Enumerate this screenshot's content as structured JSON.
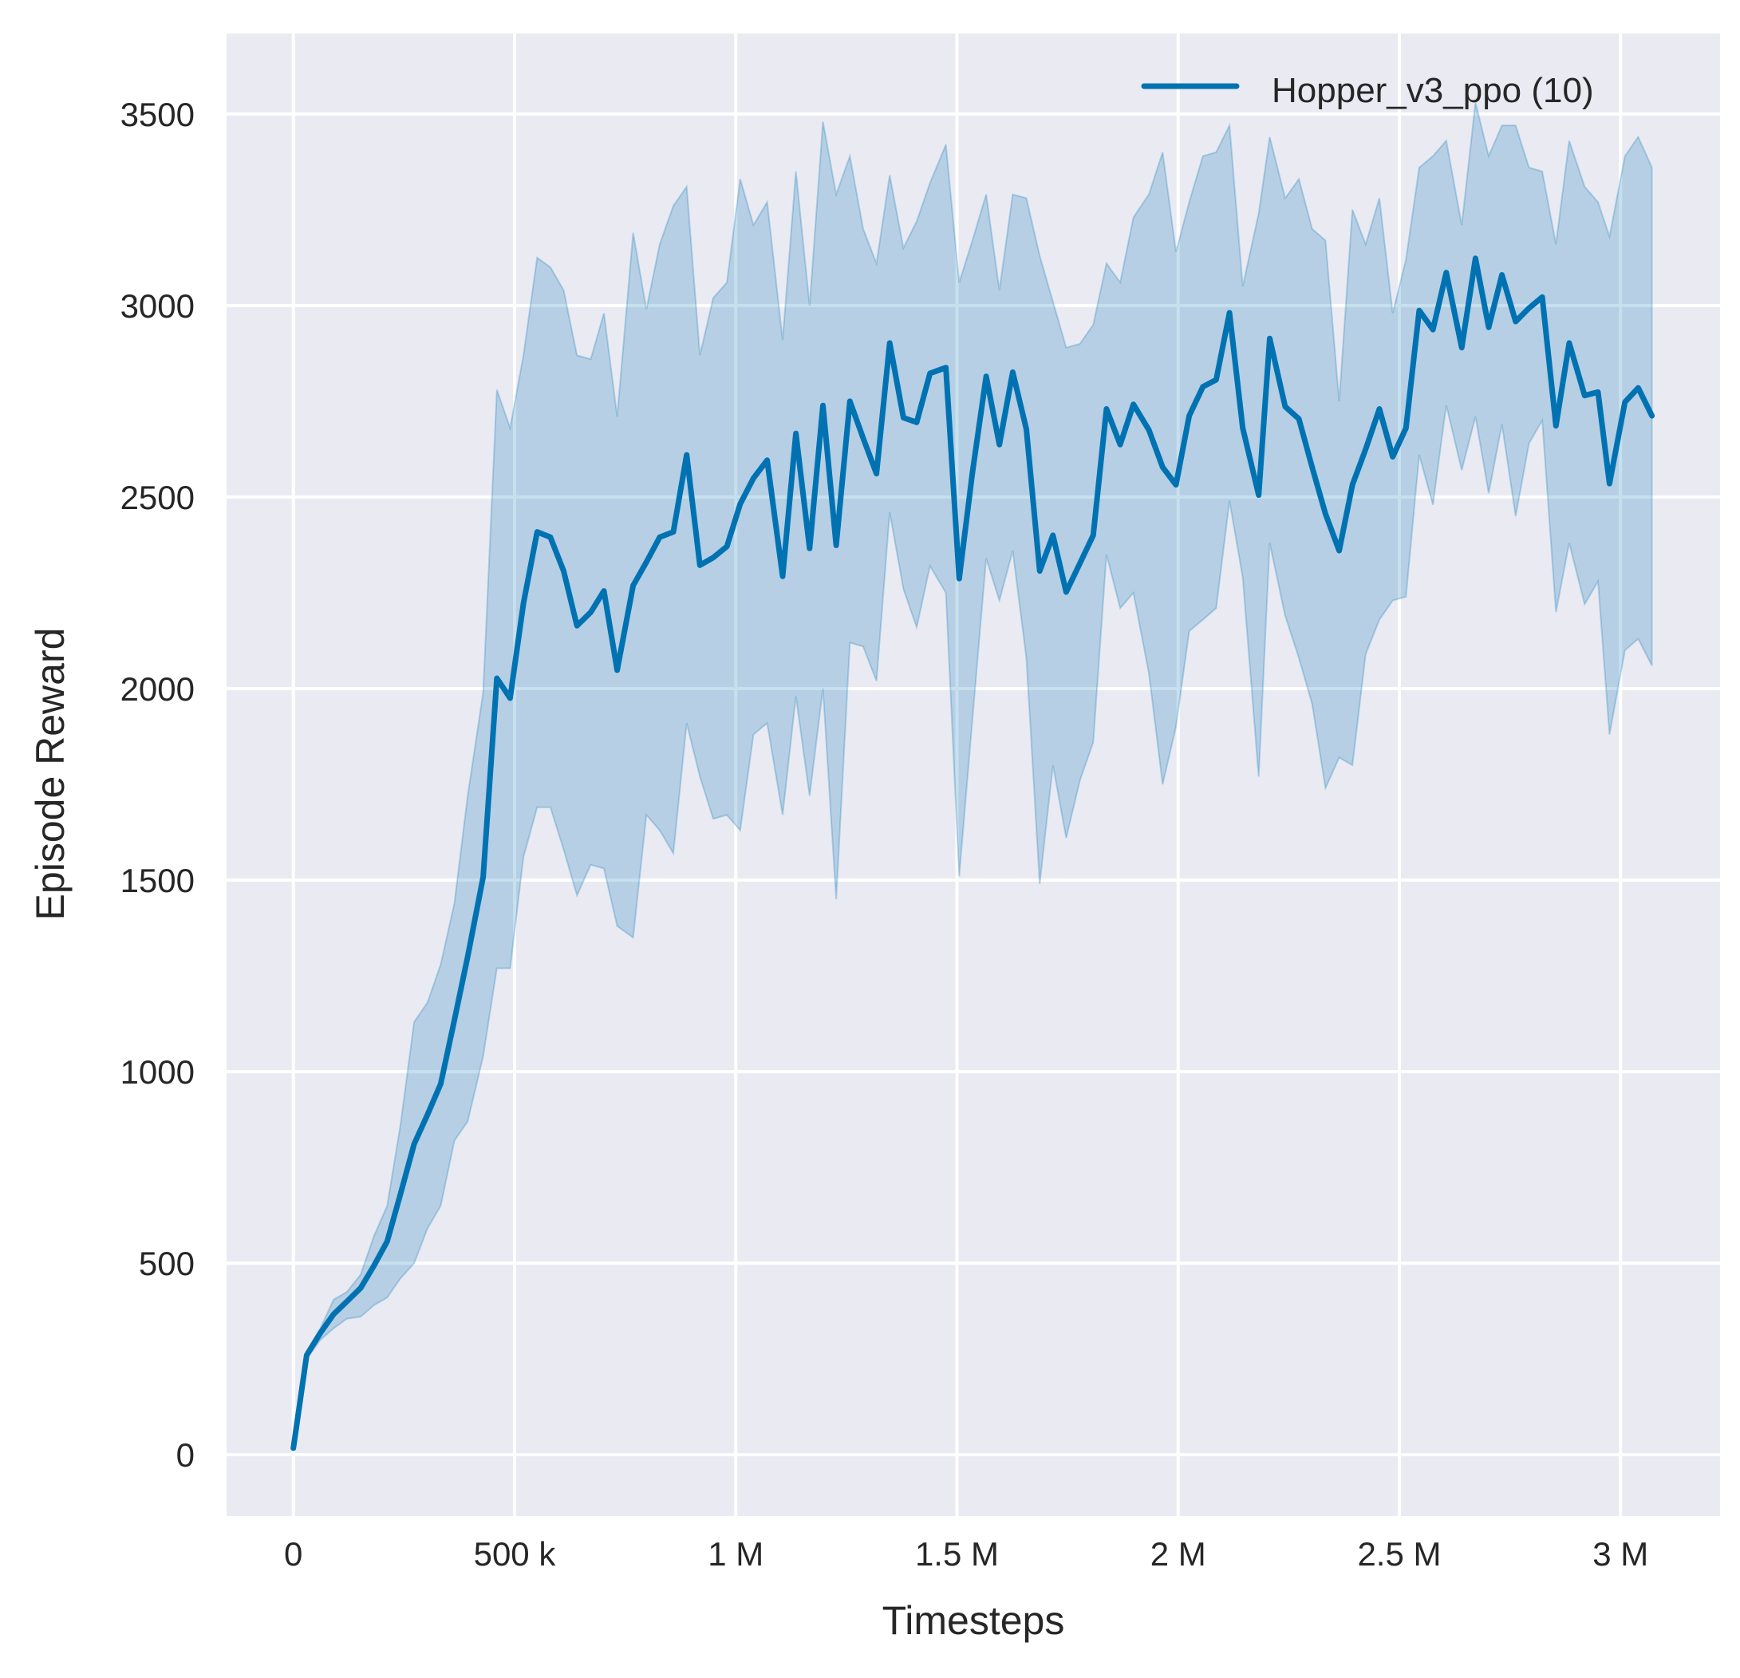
{
  "chart_data": {
    "type": "line",
    "title": "",
    "xlabel": "Timesteps",
    "ylabel": "Episode Reward",
    "xlim": [
      -151000,
      3225000
    ],
    "ylim": [
      -160,
      3710
    ],
    "xticks": [
      0,
      500000,
      1000000,
      1500000,
      2000000,
      2500000,
      3000000
    ],
    "xtick_labels": [
      "0",
      "500 k",
      "1 M",
      "1.5 M",
      "2 M",
      "2.5 M",
      "3 M"
    ],
    "yticks": [
      0,
      500,
      1000,
      1500,
      2000,
      2500,
      3000,
      3500
    ],
    "ytick_labels": [
      "0",
      "500",
      "1000",
      "1500",
      "2000",
      "2500",
      "3000",
      "3500"
    ],
    "grid": true,
    "background": "#eaeaf2",
    "legend_position": "top-right",
    "series": [
      {
        "name": "Hopper_v3_ppo (10)",
        "color": "#0072b2",
        "band_color": "#0072b2",
        "x": [
          0,
          30000,
          61000,
          91000,
          121000,
          152000,
          182000,
          212000,
          242000,
          273000,
          303000,
          333000,
          364000,
          394000,
          429000,
          460000,
          490000,
          520000,
          551000,
          581000,
          611000,
          641000,
          672000,
          702000,
          732000,
          768000,
          798000,
          828000,
          859000,
          889000,
          919000,
          949000,
          980000,
          1010000,
          1040000,
          1071000,
          1106000,
          1136000,
          1167000,
          1197000,
          1227000,
          1258000,
          1288000,
          1318000,
          1348000,
          1379000,
          1409000,
          1439000,
          1475000,
          1505000,
          1535000,
          1566000,
          1596000,
          1626000,
          1657000,
          1687000,
          1717000,
          1747000,
          1778000,
          1808000,
          1838000,
          1869000,
          1899000,
          1934000,
          1965000,
          1995000,
          2025000,
          2056000,
          2086000,
          2116000,
          2146000,
          2182000,
          2207000,
          2242000,
          2273000,
          2303000,
          2333000,
          2364000,
          2394000,
          2424000,
          2455000,
          2485000,
          2515000,
          2545000,
          2576000,
          2606000,
          2641000,
          2672000,
          2702000,
          2732000,
          2763000,
          2793000,
          2823000,
          2854000,
          2884000,
          2919000,
          2949000,
          2975000,
          3010000,
          3040000,
          3071000
        ],
        "mean": [
          17,
          260,
          318,
          367,
          400,
          435,
          493,
          557,
          680,
          811,
          887,
          968,
          1135,
          1300,
          1508,
          2027,
          1975,
          2222,
          2409,
          2395,
          2307,
          2164,
          2199,
          2255,
          2048,
          2269,
          2330,
          2395,
          2409,
          2610,
          2322,
          2342,
          2371,
          2482,
          2549,
          2596,
          2293,
          2666,
          2366,
          2739,
          2374,
          2750,
          2654,
          2561,
          2902,
          2707,
          2695,
          2823,
          2838,
          2287,
          2564,
          2815,
          2637,
          2826,
          2677,
          2307,
          2400,
          2252,
          2327,
          2400,
          2730,
          2637,
          2742,
          2675,
          2578,
          2532,
          2712,
          2788,
          2806,
          2981,
          2680,
          2505,
          2914,
          2736,
          2704,
          2578,
          2456,
          2360,
          2532,
          2625,
          2730,
          2605,
          2680,
          2987,
          2937,
          3086,
          2890,
          3123,
          2943,
          3080,
          2958,
          2993,
          3022,
          2686,
          2902,
          2765,
          2774,
          2535,
          2748,
          2785,
          2712
        ],
        "upper": [
          17,
          270,
          330,
          405,
          425,
          470,
          570,
          650,
          860,
          1130,
          1180,
          1280,
          1440,
          1720,
          1990,
          2780,
          2680,
          2870,
          3125,
          3100,
          3040,
          2870,
          2860,
          2980,
          2710,
          3190,
          2990,
          3160,
          3260,
          3310,
          2870,
          3020,
          3060,
          3330,
          3210,
          3270,
          2910,
          3350,
          3000,
          3480,
          3290,
          3390,
          3200,
          3110,
          3340,
          3150,
          3220,
          3320,
          3420,
          3060,
          3170,
          3290,
          3040,
          3290,
          3280,
          3130,
          3010,
          2890,
          2900,
          2950,
          3110,
          3060,
          3230,
          3290,
          3400,
          3140,
          3270,
          3390,
          3400,
          3470,
          3050,
          3240,
          3440,
          3280,
          3330,
          3200,
          3170,
          2750,
          3250,
          3160,
          3280,
          2980,
          3120,
          3360,
          3390,
          3430,
          3210,
          3530,
          3390,
          3470,
          3470,
          3360,
          3350,
          3160,
          3430,
          3310,
          3270,
          3180,
          3390,
          3440,
          3360
        ],
        "lower": [
          17,
          250,
          300,
          330,
          355,
          360,
          390,
          410,
          460,
          500,
          590,
          650,
          820,
          870,
          1040,
          1270,
          1270,
          1560,
          1690,
          1690,
          1580,
          1460,
          1540,
          1530,
          1380,
          1350,
          1670,
          1630,
          1570,
          1910,
          1770,
          1660,
          1670,
          1630,
          1880,
          1910,
          1670,
          1980,
          1720,
          2000,
          1450,
          2120,
          2110,
          2020,
          2460,
          2260,
          2160,
          2320,
          2250,
          1510,
          1920,
          2340,
          2230,
          2360,
          2080,
          1490,
          1800,
          1610,
          1760,
          1860,
          2350,
          2210,
          2250,
          2040,
          1750,
          1900,
          2150,
          2180,
          2210,
          2490,
          2290,
          1770,
          2380,
          2190,
          2080,
          1960,
          1740,
          1820,
          1800,
          2090,
          2180,
          2230,
          2240,
          2610,
          2480,
          2740,
          2570,
          2710,
          2510,
          2690,
          2450,
          2640,
          2700,
          2200,
          2380,
          2220,
          2280,
          1880,
          2100,
          2130,
          2060
        ]
      }
    ]
  }
}
